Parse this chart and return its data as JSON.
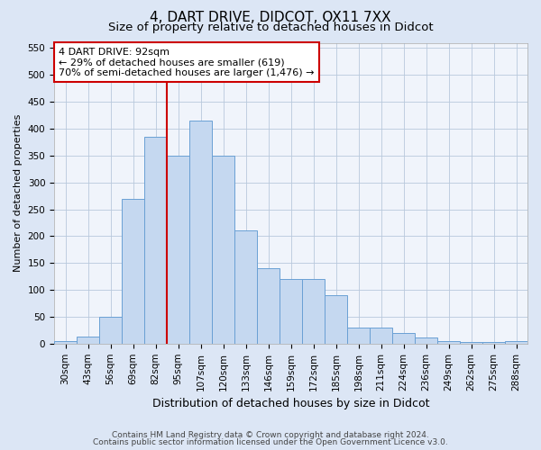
{
  "title": "4, DART DRIVE, DIDCOT, OX11 7XX",
  "subtitle": "Size of property relative to detached houses in Didcot",
  "xlabel": "Distribution of detached houses by size in Didcot",
  "ylabel": "Number of detached properties",
  "footnote1": "Contains HM Land Registry data © Crown copyright and database right 2024.",
  "footnote2": "Contains public sector information licensed under the Open Government Licence v3.0.",
  "annotation_line1": "4 DART DRIVE: 92sqm",
  "annotation_line2": "← 29% of detached houses are smaller (619)",
  "annotation_line3": "70% of semi-detached houses are larger (1,476) →",
  "bar_categories": [
    "30sqm",
    "43sqm",
    "56sqm",
    "69sqm",
    "82sqm",
    "95sqm",
    "107sqm",
    "120sqm",
    "133sqm",
    "146sqm",
    "159sqm",
    "172sqm",
    "185sqm",
    "198sqm",
    "211sqm",
    "224sqm",
    "236sqm",
    "249sqm",
    "262sqm",
    "275sqm",
    "288sqm"
  ],
  "bar_values": [
    5,
    13,
    50,
    270,
    385,
    350,
    415,
    350,
    210,
    140,
    120,
    120,
    90,
    30,
    30,
    20,
    12,
    5,
    3,
    3,
    5
  ],
  "bar_color": "#c5d8f0",
  "bar_edge_color": "#6aa0d4",
  "vline_color": "#cc0000",
  "vline_x": 4.5,
  "annotation_box_color": "#ffffff",
  "annotation_box_edge": "#cc0000",
  "ylim": [
    0,
    560
  ],
  "yticks": [
    0,
    50,
    100,
    150,
    200,
    250,
    300,
    350,
    400,
    450,
    500,
    550
  ],
  "bg_color": "#dce6f5",
  "plot_bg_color": "#f0f4fb",
  "title_fontsize": 11,
  "subtitle_fontsize": 9.5,
  "ylabel_fontsize": 8,
  "xlabel_fontsize": 9,
  "tick_fontsize": 7.5,
  "annotation_fontsize": 8,
  "footnote_fontsize": 6.5
}
